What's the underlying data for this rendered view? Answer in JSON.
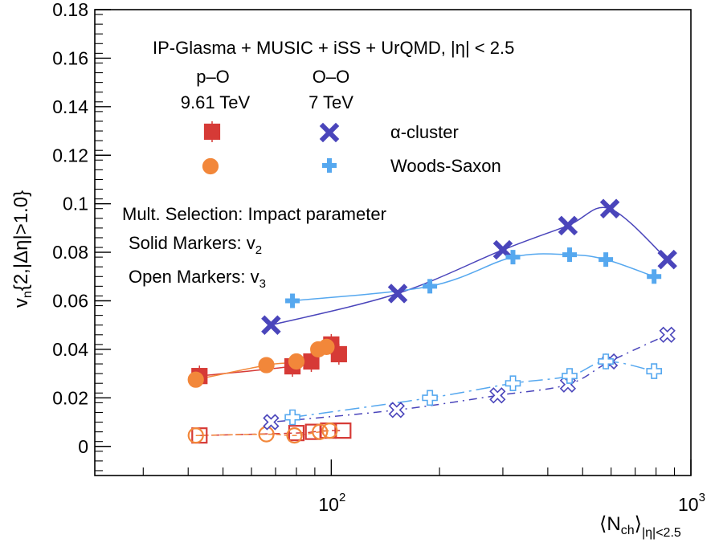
{
  "chart_data": {
    "type": "scatter",
    "title": "IP-Glasma + MUSIC + iSS + UrQMD, |η| < 2.5",
    "ylabel": "v_n{2,|Δη|>1.0}",
    "xlabel": "⟨N_ch⟩ |η|<2.5",
    "xscale": "log",
    "xlim": [
      22,
      1000
    ],
    "ylim": [
      -0.012,
      0.18
    ],
    "y_ticks": [
      0,
      0.02,
      0.04,
      0.06,
      0.08,
      0.1,
      0.12,
      0.14,
      0.16,
      0.18
    ],
    "y_tick_labels": [
      "0",
      "0.02",
      "0.04",
      "0.06",
      "0.08",
      "0.1",
      "0.12",
      "0.14",
      "0.16",
      "0.18"
    ],
    "x_major_ticks": [
      100,
      1000
    ],
    "x_tick_labels": [
      {
        "base": "10",
        "exp": "2"
      },
      {
        "base": "10",
        "exp": "3"
      }
    ],
    "legend": {
      "col1_header": [
        "p–O",
        "9.61 TeV"
      ],
      "col2_header": [
        "O–O",
        "7 TeV"
      ],
      "row1_label": "α-cluster",
      "row2_label": "Woods-Saxon"
    },
    "annotations": [
      {
        "text": "Mult. Selection: Impact parameter"
      },
      {
        "text": "Solid Markers: v",
        "sub": "2"
      },
      {
        "text": "Open Markers: v",
        "sub": "3"
      }
    ],
    "series": [
      {
        "system": "p–O",
        "geometry": "α-cluster",
        "harmonic": "v2",
        "marker": "square-filled",
        "color": "#d63a36",
        "x": [
          43,
          78,
          88,
          100,
          105
        ],
        "y": [
          0.029,
          0.033,
          0.035,
          0.042,
          0.038
        ]
      },
      {
        "system": "p–O",
        "geometry": "Woods-Saxon",
        "harmonic": "v2",
        "marker": "circle-filled",
        "color": "#f2873a",
        "x": [
          42,
          66,
          80,
          92,
          97
        ],
        "y": [
          0.0275,
          0.0335,
          0.035,
          0.04,
          0.041
        ]
      },
      {
        "system": "O–O",
        "geometry": "α-cluster",
        "harmonic": "v2",
        "marker": "x-filled",
        "color": "#4a45bb",
        "x": [
          68,
          153,
          300,
          455,
          595,
          860
        ],
        "y": [
          0.05,
          0.063,
          0.081,
          0.091,
          0.098,
          0.077
        ]
      },
      {
        "system": "O–O",
        "geometry": "Woods-Saxon",
        "harmonic": "v2",
        "marker": "plus-filled",
        "color": "#56a8ef",
        "x": [
          78,
          188,
          320,
          460,
          580,
          790
        ],
        "y": [
          0.06,
          0.066,
          0.078,
          0.079,
          0.077,
          0.07
        ]
      },
      {
        "system": "p–O",
        "geometry": "α-cluster",
        "harmonic": "v3",
        "marker": "square-open",
        "color": "#d63a36",
        "x": [
          43,
          80,
          89,
          98,
          108
        ],
        "y": [
          0.0045,
          0.0055,
          0.006,
          0.0065,
          0.0065
        ]
      },
      {
        "system": "p–O",
        "geometry": "Woods-Saxon",
        "harmonic": "v3",
        "marker": "circle-open",
        "color": "#f2873a",
        "x": [
          42,
          66,
          79,
          93,
          99
        ],
        "y": [
          0.0045,
          0.005,
          0.0045,
          0.006,
          0.0065
        ]
      },
      {
        "system": "O–O",
        "geometry": "α-cluster",
        "harmonic": "v3",
        "marker": "x-open",
        "color": "#4a45bb",
        "x": [
          68,
          152,
          290,
          455,
          595,
          860
        ],
        "y": [
          0.01,
          0.015,
          0.021,
          0.0255,
          0.035,
          0.046
        ]
      },
      {
        "system": "O–O",
        "geometry": "Woods-Saxon",
        "harmonic": "v3",
        "marker": "plus-open",
        "color": "#56a8ef",
        "x": [
          78,
          188,
          320,
          460,
          580,
          790
        ],
        "y": [
          0.012,
          0.02,
          0.026,
          0.029,
          0.035,
          0.031
        ]
      }
    ]
  }
}
